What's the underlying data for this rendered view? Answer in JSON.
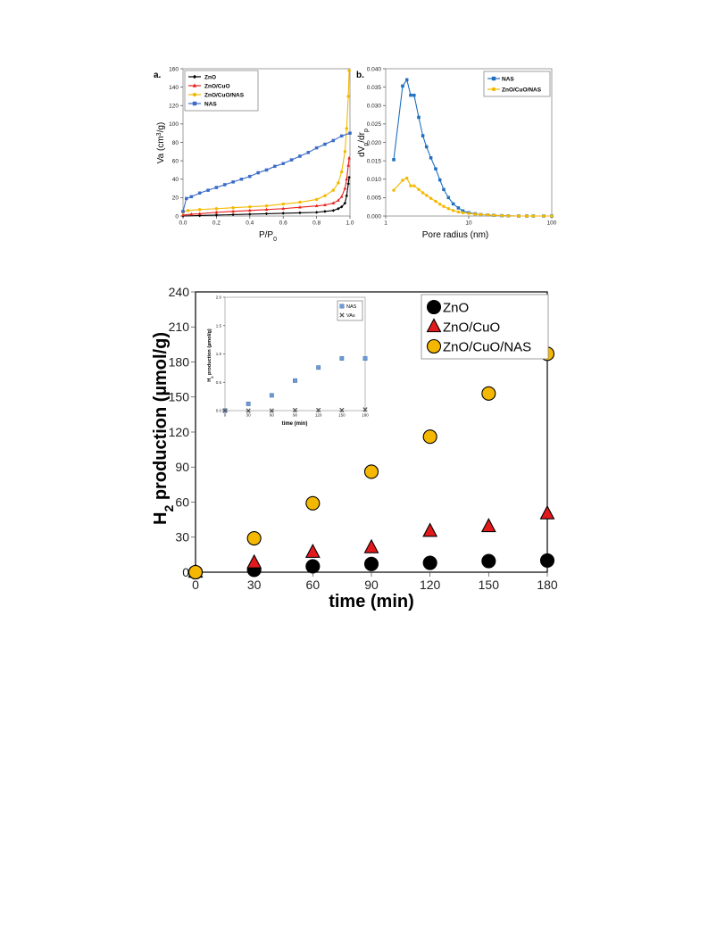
{
  "chart_data": [
    {
      "panel_letter": "a.",
      "type": "line",
      "xlabel_main": "P/P",
      "xlabel_sub": "0",
      "ylabel_main": "Va (cm",
      "ylabel_sup": "3",
      "ylabel_tail": "/g)",
      "xlim": [
        0,
        1.0
      ],
      "ylim": [
        0,
        160
      ],
      "xticks": [
        "0.0",
        "0.2",
        "0.4",
        "0.6",
        "0.8",
        "1.0"
      ],
      "yticks": [
        "0",
        "20",
        "40",
        "60",
        "80",
        "100",
        "120",
        "140",
        "160"
      ],
      "legend_position": "top-left",
      "series": [
        {
          "name": "ZnO",
          "color": "#000000",
          "marker": "diamond",
          "x": [
            0.0,
            0.1,
            0.2,
            0.3,
            0.4,
            0.5,
            0.6,
            0.7,
            0.8,
            0.85,
            0.9,
            0.93,
            0.95,
            0.97,
            0.98,
            0.99,
            0.995
          ],
          "y": [
            0,
            0.5,
            1,
            1.5,
            2,
            2.5,
            3,
            3.5,
            4,
            5,
            6,
            8,
            10,
            14,
            22,
            35,
            42
          ]
        },
        {
          "name": "ZnO/CuO",
          "color": "#e8201a",
          "marker": "triangle",
          "x": [
            0.0,
            0.05,
            0.1,
            0.2,
            0.3,
            0.4,
            0.5,
            0.6,
            0.7,
            0.8,
            0.85,
            0.9,
            0.93,
            0.95,
            0.97,
            0.98,
            0.99,
            0.995
          ],
          "y": [
            1,
            2,
            2.5,
            4,
            5,
            6,
            7,
            8,
            9.5,
            11,
            12,
            14,
            17,
            21,
            30,
            40,
            55,
            63
          ]
        },
        {
          "name": "ZnO/CuO/NAS",
          "color": "#f5b800",
          "marker": "circle",
          "x": [
            0.0,
            0.03,
            0.1,
            0.2,
            0.3,
            0.4,
            0.5,
            0.6,
            0.7,
            0.8,
            0.85,
            0.9,
            0.93,
            0.95,
            0.97,
            0.98,
            0.99,
            0.995
          ],
          "y": [
            4,
            6,
            7,
            8,
            9,
            10,
            11,
            13,
            15,
            18,
            22,
            28,
            36,
            48,
            70,
            95,
            130,
            158
          ]
        },
        {
          "name": "NAS",
          "color": "#3a6bc8",
          "marker": "square",
          "x": [
            0.0,
            0.02,
            0.05,
            0.1,
            0.15,
            0.2,
            0.25,
            0.3,
            0.35,
            0.4,
            0.45,
            0.5,
            0.55,
            0.6,
            0.65,
            0.7,
            0.75,
            0.8,
            0.85,
            0.9,
            0.95,
            1.0
          ],
          "y": [
            5,
            19,
            21,
            25,
            28,
            31,
            34,
            37,
            40,
            43,
            47,
            50,
            54,
            57,
            61,
            65,
            69,
            74,
            78,
            82,
            87,
            90
          ]
        }
      ]
    },
    {
      "panel_letter": "b.",
      "type": "line",
      "xlabel": "Pore radius (nm)",
      "ylabel_main": "dV",
      "ylabel_sub1": "p",
      "ylabel_mid": "/dr",
      "ylabel_sub2": "p",
      "x_scale": "log",
      "xlim": [
        1,
        100
      ],
      "ylim": [
        0,
        0.04
      ],
      "xticks": [
        "1",
        "10",
        "100"
      ],
      "yticks": [
        "0.000",
        "0.005",
        "0.010",
        "0.015",
        "0.020",
        "0.025",
        "0.030",
        "0.035",
        "0.040"
      ],
      "legend_position": "top-right",
      "series": [
        {
          "name": "NAS",
          "color": "#1f6fbf",
          "marker": "square",
          "x": [
            1.25,
            1.6,
            1.8,
            2.0,
            2.2,
            2.5,
            2.8,
            3.1,
            3.5,
            4.0,
            4.5,
            5.0,
            5.7,
            6.5,
            7.5,
            8.5,
            10,
            12,
            14,
            17,
            20,
            25,
            30,
            40,
            50,
            60,
            80,
            100
          ],
          "y": [
            0.0153,
            0.0353,
            0.037,
            0.0328,
            0.0328,
            0.0268,
            0.0218,
            0.0188,
            0.0158,
            0.0128,
            0.0098,
            0.0072,
            0.005,
            0.0033,
            0.0022,
            0.0014,
            0.0009,
            0.0006,
            0.0004,
            0.0003,
            0.0002,
            0.0001,
            5e-05,
            0,
            0,
            0,
            0,
            0
          ]
        },
        {
          "name": "ZnO/CuO/NAS",
          "color": "#f5b800",
          "marker": "circle",
          "x": [
            1.25,
            1.6,
            1.8,
            2.0,
            2.2,
            2.5,
            2.8,
            3.1,
            3.5,
            4.0,
            4.5,
            5.0,
            5.7,
            6.5,
            7.5,
            8.5,
            10,
            12,
            14,
            17,
            20,
            25,
            30,
            40,
            50,
            60,
            80,
            100
          ],
          "y": [
            0.007,
            0.0097,
            0.0103,
            0.0082,
            0.0082,
            0.0072,
            0.0063,
            0.0056,
            0.0048,
            0.004,
            0.0032,
            0.0026,
            0.002,
            0.0015,
            0.0011,
            0.0009,
            0.0007,
            0.0005,
            0.0004,
            0.0003,
            0.0002,
            0.0001,
            5e-05,
            0,
            0,
            0,
            0,
            0
          ]
        }
      ]
    },
    {
      "type": "scatter",
      "xlabel": "time (min)",
      "ylabel_pre": "H",
      "ylabel_sub": "2",
      "ylabel_post": " production (µmol/g)",
      "xlim": [
        0,
        180
      ],
      "ylim": [
        0,
        240
      ],
      "xticks": [
        "0",
        "30",
        "60",
        "90",
        "120",
        "150",
        "180"
      ],
      "yticks": [
        "0",
        "30",
        "60",
        "90",
        "120",
        "150",
        "180",
        "210",
        "240"
      ],
      "legend_position": "top-right",
      "series": [
        {
          "name": "ZnO",
          "color": "#000000",
          "marker": "circle",
          "x": [
            0,
            30,
            60,
            90,
            120,
            150,
            180
          ],
          "y": [
            0,
            2,
            5,
            7,
            8,
            9.5,
            10
          ]
        },
        {
          "name": "ZnO/CuO",
          "color": "#e31a1c",
          "marker": "triangle",
          "x": [
            0,
            30,
            60,
            90,
            120,
            150,
            180
          ],
          "y": [
            0,
            8,
            17,
            21,
            35,
            39,
            50
          ]
        },
        {
          "name": "ZnO/CuO/NAS",
          "color": "#f5b800",
          "marker": "circle",
          "x": [
            0,
            30,
            60,
            90,
            120,
            150,
            180
          ],
          "y": [
            0,
            29,
            59,
            86,
            116,
            153,
            187
          ]
        }
      ]
    },
    {
      "type": "scatter",
      "inset": true,
      "xlabel": "time (min)",
      "ylabel_pre": "H",
      "ylabel_sub": "2",
      "ylabel_post": " production (µmol/g)",
      "xlim": [
        0,
        180
      ],
      "ylim": [
        0,
        2.0
      ],
      "xticks": [
        "0",
        "30",
        "60",
        "90",
        "120",
        "150",
        "180"
      ],
      "yticks": [
        "0.0",
        "0.5",
        "1.0",
        "1.5",
        "2.0"
      ],
      "legend_position": "top-right",
      "series": [
        {
          "name": "NAS",
          "color": "#6b9bd6",
          "marker": "square",
          "x": [
            0,
            30,
            60,
            90,
            120,
            150,
            180
          ],
          "y": [
            0,
            0.12,
            0.27,
            0.53,
            0.76,
            0.92,
            0.92
          ]
        },
        {
          "name": "VAs",
          "color": "#555555",
          "marker": "x",
          "x": [
            0,
            30,
            60,
            90,
            120,
            150,
            180
          ],
          "y": [
            0,
            0,
            0,
            0.01,
            0.01,
            0.01,
            0.02
          ]
        }
      ]
    }
  ]
}
